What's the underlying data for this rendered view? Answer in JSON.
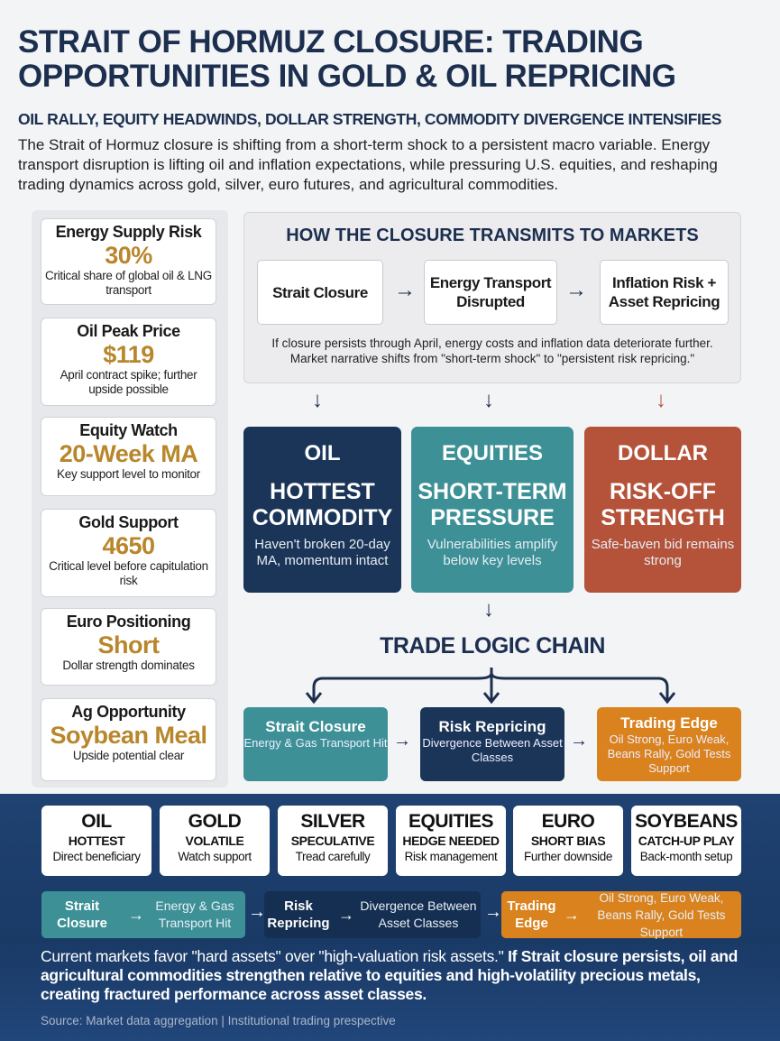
{
  "header": {
    "title": "STRAIT OF HORMUZ CLOSURE: TRADING OPPORTUNITIES IN GOLD & OIL REPRICING",
    "subtitle": "OIL RALLY, EQUITY HEADWINDS, DOLLAR STRENGTH, COMMODITY DIVERGENCE INTENSIFIES",
    "intro": "The Strait of Hormuz closure is shifting from a short-term shock to a persistent macro variable. Energy transport disruption is lifting oil and inflation expectations, while pressuring U.S. equities, and reshaping trading dynamics across gold, silver, euro futures, and agricultural commodities."
  },
  "metrics": [
    {
      "title": "Energy Supply Risk",
      "value": "30%",
      "desc": "Critical share of global oil & LNG transport"
    },
    {
      "title": "Oil Peak Price",
      "value": "$119",
      "desc": "April contract spike; further upside possible"
    },
    {
      "title": "Equity Watch",
      "value": "20-Week MA",
      "desc": "Key support level to monitor"
    },
    {
      "title": "Gold Support",
      "value": "4650",
      "desc": "Critical level before capitulation risk"
    },
    {
      "title": "Euro Positioning",
      "value": "Short",
      "desc": "Dollar strength dominates"
    },
    {
      "title": "Ag Opportunity",
      "value": "Soybean Meal",
      "desc": "Upside potential clear"
    }
  ],
  "transmission": {
    "heading": "HOW THE CLOSURE TRANSMITS TO MARKETS",
    "steps": [
      "Strait Closure",
      "Energy Transport Disrupted",
      "Inflation Risk + Asset Repricing"
    ],
    "note": "If closure persists through April, energy costs and inflation data deteriorate further. Market narrative shifts from \"short-term shock\" to \"persistent risk repricing.\""
  },
  "impacts": [
    {
      "asset": "OIL",
      "status": "HOTTEST COMMODITY",
      "desc": "Haven't broken 20-day MA, momentum intact",
      "color": "#1b3558"
    },
    {
      "asset": "EQUITIES",
      "status": "SHORT-TERM PRESSURE",
      "desc": "Vulnerabilities amplify below key levels",
      "color": "#3d9196"
    },
    {
      "asset": "DOLLAR",
      "status": "RISK-OFF STRENGTH",
      "desc": "Safe-baven bid remains strong",
      "color": "#b5533a"
    }
  ],
  "trade_logic": {
    "heading": "TRADE LOGIC CHAIN",
    "steps": [
      {
        "title": "Strait Closure",
        "desc": "Energy & Gas Transport Hit",
        "color": "#3d9196"
      },
      {
        "title": "Risk Repricing",
        "desc": "Divergence Between Asset Classes",
        "color": "#1b3558"
      },
      {
        "title": "Trading Edge",
        "desc": "Oil Strong, Euro Weak, Beans Rally, Gold Tests Support",
        "color": "#d9821e"
      }
    ]
  },
  "assets": [
    {
      "name": "OIL",
      "stance": "HOTTEST",
      "desc": "Direct beneficiary"
    },
    {
      "name": "GOLD",
      "stance": "VOLATILE",
      "desc": "Watch support"
    },
    {
      "name": "SILVER",
      "stance": "SPECULATIVE",
      "desc": "Tread carefully"
    },
    {
      "name": "EQUITIES",
      "stance": "HEDGE NEEDED",
      "desc": "Risk management"
    },
    {
      "name": "EURO",
      "stance": "SHORT BIAS",
      "desc": "Further downside"
    },
    {
      "name": "SOYBEANS",
      "stance": "CATCH-UP PLAY",
      "desc": "Back-month setup"
    }
  ],
  "flow": [
    {
      "label": "Strait Closure",
      "result": "Energy & Gas Transport Hit"
    },
    {
      "label": "Risk Repricing",
      "result": "Divergence Between Asset Classes"
    },
    {
      "label": "Trading Edge",
      "result": "Oil Strong, Euro Weak, Beans Rally, Gold Tests Support"
    }
  ],
  "summary": {
    "plain": "Current markets favor \"hard assets\" over \"high-valuation risk assets.\" ",
    "bold": "If Strait closure persists, oil and agricultural commodities strengthen relative to equities and high-volatility precious metals, creating fractured performance across asset classes."
  },
  "source": "Source: Market data aggregation | Institutional trading prespective"
}
